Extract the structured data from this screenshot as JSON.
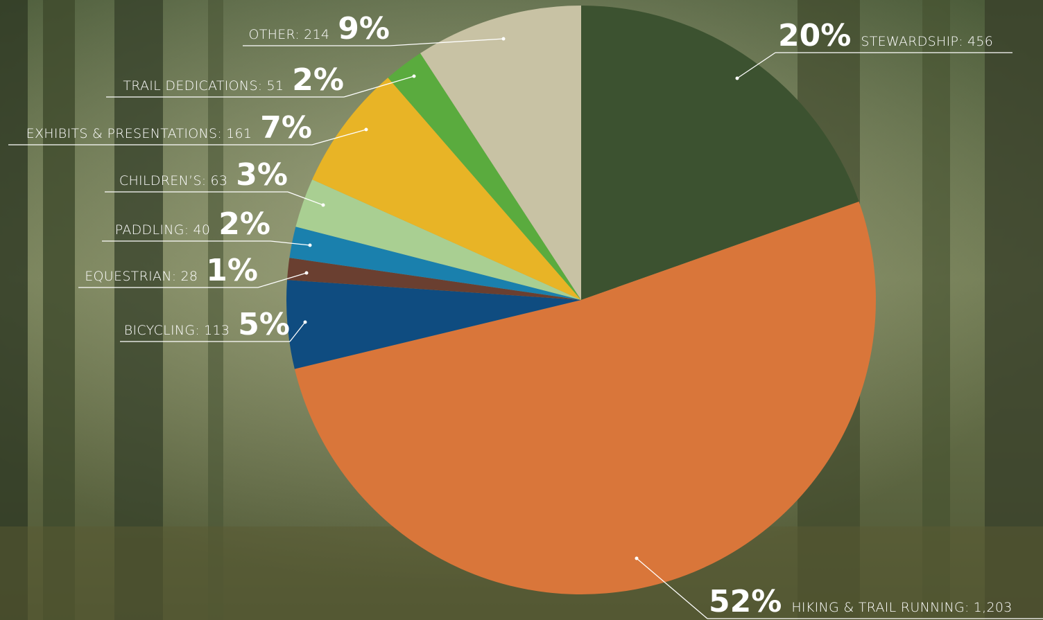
{
  "chart_data": {
    "type": "pie",
    "categories": [
      "STEWARDSHIP:",
      "HIKING & TRAIL RUNNING:",
      "BICYCLING:",
      "EQUESTRIAN:",
      "PADDLING:",
      "CHILDREN’S:",
      "EXHIBITS & PRESENTATIONS:",
      "TRAIL DEDICATIONS:",
      "OTHER:"
    ],
    "values": [
      456,
      1203,
      113,
      28,
      40,
      63,
      161,
      51,
      214
    ],
    "value_labels": [
      "456",
      "1,203",
      "113",
      "28",
      "40",
      "63",
      "161",
      "51",
      "214"
    ],
    "percents": [
      20,
      52,
      5,
      1,
      2,
      3,
      7,
      2,
      9
    ],
    "percent_labels": [
      "20%",
      "52%",
      "5%",
      "1%",
      "2%",
      "3%",
      "7%",
      "2%",
      "9%"
    ],
    "colors": [
      "#3c5230",
      "#d9763a",
      "#0f4c80",
      "#6a3f30",
      "#1a80ad",
      "#a9cf92",
      "#e8b426",
      "#5aab3e",
      "#c8c2a4"
    ]
  }
}
